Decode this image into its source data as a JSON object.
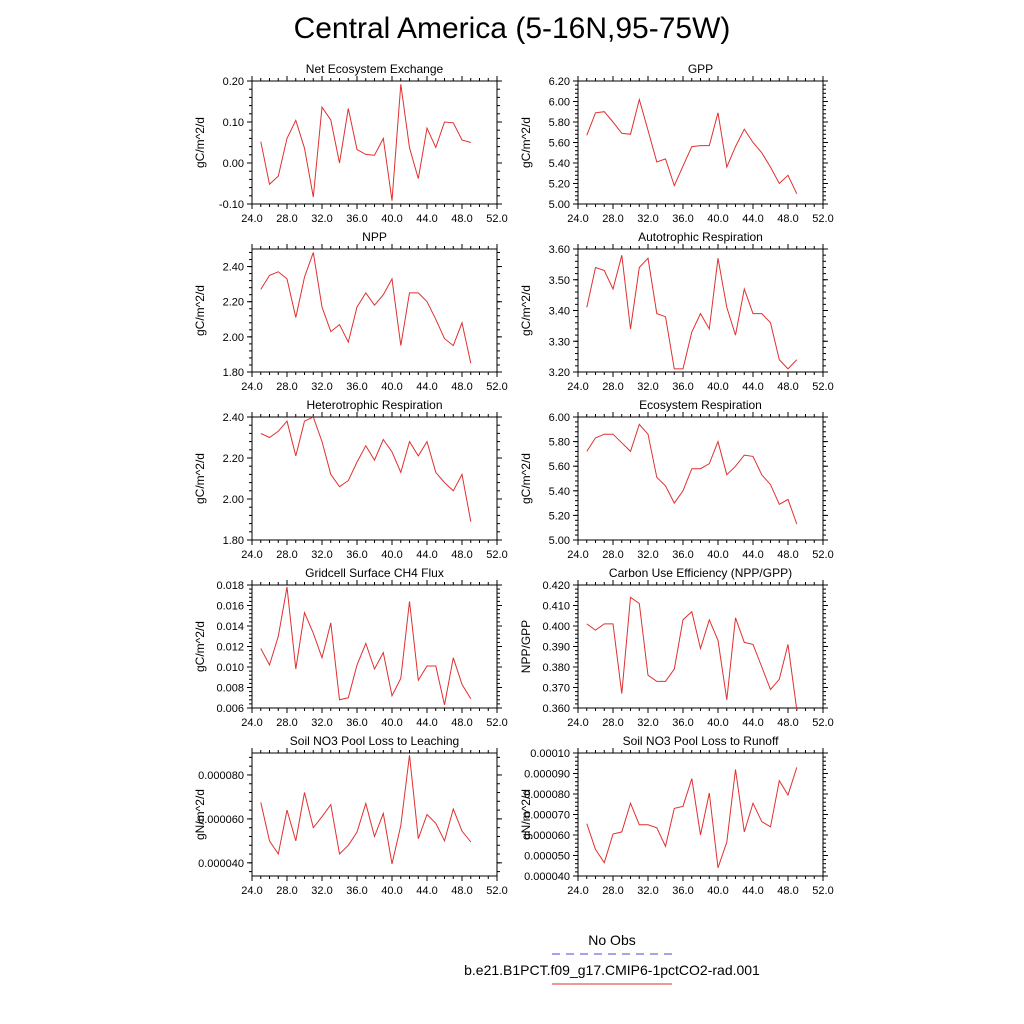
{
  "title": "Central America (5-16N,95-75W)",
  "legend": {
    "obs_label": "No Obs",
    "obs_color": "#4a4ad8",
    "model_label": "b.e21.B1PCT.f09_g17.CMIP6-1pctCO2-rad.001",
    "model_color": "#e03030"
  },
  "chart_data": [
    {
      "type": "line",
      "title": "Net Ecosystem Exchange",
      "ylabel": "gC/m^2/d",
      "xlim": [
        24,
        52
      ],
      "ylim": [
        -0.1,
        0.2
      ],
      "xticks": [
        "24.0",
        "28.0",
        "32.0",
        "36.0",
        "40.0",
        "44.0",
        "48.0",
        "52.0"
      ],
      "yticks": [
        "-0.10",
        "0.00",
        "0.10",
        "0.20"
      ],
      "ytick_values": [
        -0.1,
        0.0,
        0.1,
        0.2
      ],
      "x": [
        25,
        26,
        27,
        28,
        29,
        30,
        31,
        32,
        33,
        34,
        35,
        36,
        37,
        38,
        39,
        40,
        41,
        42,
        43,
        44,
        45,
        46,
        47,
        48,
        49
      ],
      "values": [
        0.052,
        -0.052,
        -0.032,
        0.06,
        0.104,
        0.036,
        -0.083,
        0.136,
        0.105,
        0.0,
        0.133,
        0.033,
        0.021,
        0.019,
        0.06,
        -0.092,
        0.192,
        0.037,
        -0.038,
        0.085,
        0.038,
        0.1,
        0.098,
        0.056,
        0.05
      ]
    },
    {
      "type": "line",
      "title": "GPP",
      "ylabel": "gC/m^2/d",
      "xlim": [
        24,
        52
      ],
      "ylim": [
        5.0,
        6.2
      ],
      "xticks": [
        "24.0",
        "28.0",
        "32.0",
        "36.0",
        "40.0",
        "44.0",
        "48.0",
        "52.0"
      ],
      "yticks": [
        "5.00",
        "5.20",
        "5.40",
        "5.60",
        "5.80",
        "6.00",
        "6.20"
      ],
      "ytick_values": [
        5.0,
        5.2,
        5.4,
        5.6,
        5.8,
        6.0,
        6.2
      ],
      "x": [
        25,
        26,
        27,
        28,
        29,
        30,
        31,
        32,
        33,
        34,
        35,
        36,
        37,
        38,
        39,
        40,
        41,
        42,
        43,
        44,
        45,
        46,
        47,
        48,
        49
      ],
      "values": [
        5.67,
        5.89,
        5.9,
        5.8,
        5.69,
        5.68,
        6.02,
        5.72,
        5.41,
        5.44,
        5.18,
        5.37,
        5.56,
        5.57,
        5.57,
        5.89,
        5.36,
        5.56,
        5.73,
        5.6,
        5.5,
        5.36,
        5.2,
        5.28,
        5.1
      ]
    },
    {
      "type": "line",
      "title": "NPP",
      "ylabel": "gC/m^2/d",
      "xlim": [
        24,
        52
      ],
      "ylim": [
        1.8,
        2.5
      ],
      "xticks": [
        "24.0",
        "28.0",
        "32.0",
        "36.0",
        "40.0",
        "44.0",
        "48.0",
        "52.0"
      ],
      "yticks": [
        "1.80",
        "2.00",
        "2.20",
        "2.40"
      ],
      "ytick_values": [
        1.8,
        2.0,
        2.2,
        2.4
      ],
      "x": [
        25,
        26,
        27,
        28,
        29,
        30,
        31,
        32,
        33,
        34,
        35,
        36,
        37,
        38,
        39,
        40,
        41,
        42,
        43,
        44,
        45,
        46,
        47,
        48,
        49
      ],
      "values": [
        2.27,
        2.35,
        2.37,
        2.33,
        2.11,
        2.34,
        2.48,
        2.17,
        2.03,
        2.07,
        1.97,
        2.17,
        2.25,
        2.18,
        2.24,
        2.33,
        1.95,
        2.25,
        2.25,
        2.2,
        2.1,
        1.99,
        1.95,
        2.08,
        1.85
      ]
    },
    {
      "type": "line",
      "title": "Autotrophic Respiration",
      "ylabel": "gC/m^2/d",
      "xlim": [
        24,
        52
      ],
      "ylim": [
        3.2,
        3.6
      ],
      "xticks": [
        "24.0",
        "28.0",
        "32.0",
        "36.0",
        "40.0",
        "44.0",
        "48.0",
        "52.0"
      ],
      "yticks": [
        "3.20",
        "3.30",
        "3.40",
        "3.50",
        "3.60"
      ],
      "ytick_values": [
        3.2,
        3.3,
        3.4,
        3.5,
        3.6
      ],
      "x": [
        25,
        26,
        27,
        28,
        29,
        30,
        31,
        32,
        33,
        34,
        35,
        36,
        37,
        38,
        39,
        40,
        41,
        42,
        43,
        44,
        45,
        46,
        47,
        48,
        49
      ],
      "values": [
        3.41,
        3.54,
        3.53,
        3.47,
        3.58,
        3.34,
        3.54,
        3.57,
        3.39,
        3.38,
        3.21,
        3.21,
        3.33,
        3.39,
        3.34,
        3.57,
        3.41,
        3.32,
        3.47,
        3.39,
        3.39,
        3.36,
        3.24,
        3.21,
        3.24
      ]
    },
    {
      "type": "line",
      "title": "Heterotrophic Respiration",
      "ylabel": "gC/m^2/d",
      "xlim": [
        24,
        52
      ],
      "ylim": [
        1.8,
        2.4
      ],
      "xticks": [
        "24.0",
        "28.0",
        "32.0",
        "36.0",
        "40.0",
        "44.0",
        "48.0",
        "52.0"
      ],
      "yticks": [
        "1.80",
        "2.00",
        "2.20",
        "2.40"
      ],
      "ytick_values": [
        1.8,
        2.0,
        2.2,
        2.4
      ],
      "x": [
        25,
        26,
        27,
        28,
        29,
        30,
        31,
        32,
        33,
        34,
        35,
        36,
        37,
        38,
        39,
        40,
        41,
        42,
        43,
        44,
        45,
        46,
        47,
        48,
        49
      ],
      "values": [
        2.32,
        2.3,
        2.33,
        2.38,
        2.21,
        2.38,
        2.4,
        2.28,
        2.12,
        2.06,
        2.09,
        2.18,
        2.26,
        2.19,
        2.29,
        2.23,
        2.13,
        2.28,
        2.21,
        2.28,
        2.13,
        2.08,
        2.04,
        2.12,
        1.89
      ]
    },
    {
      "type": "line",
      "title": "Ecosystem Respiration",
      "ylabel": "gC/m^2/d",
      "xlim": [
        24,
        52
      ],
      "ylim": [
        5.0,
        6.0
      ],
      "xticks": [
        "24.0",
        "28.0",
        "32.0",
        "36.0",
        "40.0",
        "44.0",
        "48.0",
        "52.0"
      ],
      "yticks": [
        "5.00",
        "5.20",
        "5.40",
        "5.60",
        "5.80",
        "6.00"
      ],
      "ytick_values": [
        5.0,
        5.2,
        5.4,
        5.6,
        5.8,
        6.0
      ],
      "x": [
        25,
        26,
        27,
        28,
        29,
        30,
        31,
        32,
        33,
        34,
        35,
        36,
        37,
        38,
        39,
        40,
        41,
        42,
        43,
        44,
        45,
        46,
        47,
        48,
        49
      ],
      "values": [
        5.72,
        5.83,
        5.86,
        5.86,
        5.79,
        5.72,
        5.94,
        5.86,
        5.51,
        5.44,
        5.3,
        5.4,
        5.58,
        5.58,
        5.62,
        5.8,
        5.53,
        5.6,
        5.69,
        5.68,
        5.53,
        5.45,
        5.29,
        5.33,
        5.13
      ]
    },
    {
      "type": "line",
      "title": "Gridcell Surface CH4 Flux",
      "ylabel": "gC/m^2/d",
      "xlim": [
        24,
        52
      ],
      "ylim": [
        0.006,
        0.018
      ],
      "xticks": [
        "24.0",
        "28.0",
        "32.0",
        "36.0",
        "40.0",
        "44.0",
        "48.0",
        "52.0"
      ],
      "yticks": [
        "0.006",
        "0.008",
        "0.010",
        "0.012",
        "0.014",
        "0.016",
        "0.018"
      ],
      "ytick_values": [
        0.006,
        0.008,
        0.01,
        0.012,
        0.014,
        0.016,
        0.018
      ],
      "x": [
        25,
        26,
        27,
        28,
        29,
        30,
        31,
        32,
        33,
        34,
        35,
        36,
        37,
        38,
        39,
        40,
        41,
        42,
        43,
        44,
        45,
        46,
        47,
        48,
        49
      ],
      "values": [
        0.0118,
        0.0102,
        0.013,
        0.0178,
        0.0098,
        0.0153,
        0.0133,
        0.0109,
        0.0143,
        0.0068,
        0.007,
        0.0102,
        0.0123,
        0.0098,
        0.0114,
        0.0072,
        0.0089,
        0.0164,
        0.0087,
        0.0101,
        0.0101,
        0.0063,
        0.0109,
        0.0083,
        0.0069
      ]
    },
    {
      "type": "line",
      "title": "Carbon Use Efficiency (NPP/GPP)",
      "ylabel": "NPP/GPP",
      "xlim": [
        24,
        52
      ],
      "ylim": [
        0.36,
        0.42
      ],
      "xticks": [
        "24.0",
        "28.0",
        "32.0",
        "36.0",
        "40.0",
        "44.0",
        "48.0",
        "52.0"
      ],
      "yticks": [
        "0.360",
        "0.370",
        "0.380",
        "0.390",
        "0.400",
        "0.410",
        "0.420"
      ],
      "ytick_values": [
        0.36,
        0.37,
        0.38,
        0.39,
        0.4,
        0.41,
        0.42
      ],
      "x": [
        25,
        26,
        27,
        28,
        29,
        30,
        31,
        32,
        33,
        34,
        35,
        36,
        37,
        38,
        39,
        40,
        41,
        42,
        43,
        44,
        45,
        46,
        47,
        48,
        49
      ],
      "values": [
        0.401,
        0.398,
        0.401,
        0.401,
        0.367,
        0.414,
        0.411,
        0.376,
        0.373,
        0.373,
        0.379,
        0.403,
        0.407,
        0.389,
        0.403,
        0.393,
        0.364,
        0.404,
        0.392,
        0.391,
        0.38,
        0.369,
        0.374,
        0.391,
        0.359
      ]
    },
    {
      "type": "line",
      "title": "Soil NO3 Pool Loss to Leaching",
      "ylabel": "gN/m^2/d",
      "xlim": [
        24,
        52
      ],
      "ylim": [
        3.4e-05,
        9e-05
      ],
      "xticks": [
        "24.0",
        "28.0",
        "32.0",
        "36.0",
        "40.0",
        "44.0",
        "48.0",
        "52.0"
      ],
      "yticks": [
        "0.000040",
        "0.000060",
        "0.000080"
      ],
      "ytick_values": [
        4e-05,
        6e-05,
        8e-05
      ],
      "x": [
        25,
        26,
        27,
        28,
        29,
        30,
        31,
        32,
        33,
        34,
        35,
        36,
        37,
        38,
        39,
        40,
        41,
        42,
        43,
        44,
        45,
        46,
        47,
        48,
        49
      ],
      "values": [
        6.75e-05,
        5e-05,
        4.4e-05,
        6.4e-05,
        5e-05,
        7.2e-05,
        5.6e-05,
        6.1e-05,
        6.65e-05,
        4.4e-05,
        4.8e-05,
        5.4e-05,
        6.7e-05,
        5.2e-05,
        6.25e-05,
        3.95e-05,
        5.7e-05,
        8.9e-05,
        5.1e-05,
        6.2e-05,
        5.8e-05,
        5e-05,
        6.45e-05,
        5.45e-05,
        4.95e-05
      ]
    },
    {
      "type": "line",
      "title": "Soil NO3 Pool Loss to Runoff",
      "ylabel": "gN/m^2/d",
      "xlim": [
        24,
        52
      ],
      "ylim": [
        4e-05,
        0.0001
      ],
      "xticks": [
        "24.0",
        "28.0",
        "32.0",
        "36.0",
        "40.0",
        "44.0",
        "48.0",
        "52.0"
      ],
      "yticks": [
        "0.000040",
        "0.000050",
        "0.000060",
        "0.000070",
        "0.000080",
        "0.000090",
        "0.00010"
      ],
      "ytick_values": [
        4e-05,
        5e-05,
        6e-05,
        7e-05,
        8e-05,
        9e-05,
        0.0001
      ],
      "x": [
        25,
        26,
        27,
        28,
        29,
        30,
        31,
        32,
        33,
        34,
        35,
        36,
        37,
        38,
        39,
        40,
        41,
        42,
        43,
        44,
        45,
        46,
        47,
        48,
        49
      ],
      "values": [
        6.55e-05,
        5.3e-05,
        4.65e-05,
        6.05e-05,
        6.15e-05,
        7.55e-05,
        6.5e-05,
        6.5e-05,
        6.35e-05,
        5.45e-05,
        7.3e-05,
        7.4e-05,
        8.75e-05,
        6e-05,
        8.05e-05,
        4.4e-05,
        5.65e-05,
        9.2e-05,
        6.15e-05,
        7.55e-05,
        6.65e-05,
        6.4e-05,
        8.65e-05,
        7.95e-05,
        9.3e-05
      ]
    }
  ]
}
